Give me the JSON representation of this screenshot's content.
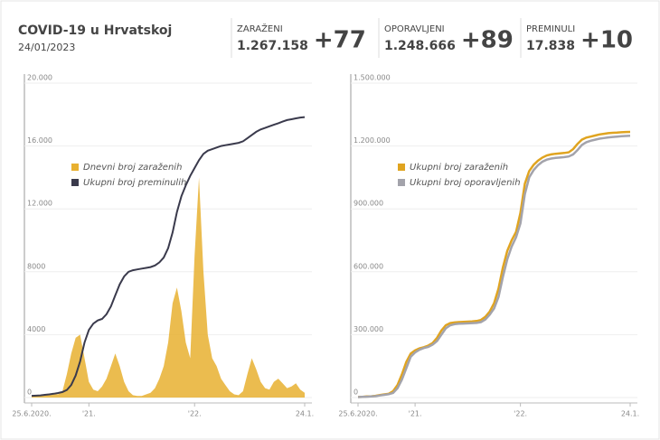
{
  "header": {
    "title": "COVID-19 u Hrvatskoj",
    "date": "24/01/2023",
    "stats": [
      {
        "label": "ZARAŽENI",
        "total": "1.267.158",
        "delta": "+77",
        "color": "#b8202a"
      },
      {
        "label": "OPORAVLJENI",
        "total": "1.248.666",
        "delta": "+89",
        "color": "#2e8b3a"
      },
      {
        "label": "PREMINULI",
        "total": "17.838",
        "delta": "+10",
        "color": "#b8202a"
      }
    ]
  },
  "chart_data": [
    {
      "type": "line",
      "categories": [
        "25.6.2020.",
        null,
        null,
        null,
        null,
        null,
        null,
        null,
        null,
        null,
        null,
        null,
        null,
        "'21.",
        null,
        null,
        null,
        null,
        null,
        null,
        null,
        null,
        null,
        null,
        null,
        null,
        null,
        null,
        null,
        null,
        null,
        null,
        null,
        null,
        null,
        null,
        null,
        "'22.",
        null,
        null,
        null,
        null,
        null,
        null,
        null,
        null,
        null,
        null,
        null,
        null,
        null,
        null,
        null,
        null,
        null,
        null,
        null,
        null,
        null,
        null,
        null,
        null,
        "24.1."
      ],
      "ylim": [
        0,
        20000
      ],
      "yticks": [
        0,
        4000,
        8000,
        {
          "value": 12000,
          "label": "12.000"
        },
        {
          "value": 16000,
          "label": "16.000"
        },
        {
          "value": 20000,
          "label": "20.000"
        }
      ],
      "grid": true,
      "legend": "upper left",
      "series": [
        {
          "name": "Dnevni broj zaraženih",
          "type": "area",
          "color": "#e8b030",
          "values": [
            50,
            100,
            150,
            200,
            250,
            250,
            200,
            400,
            1500,
            2800,
            3800,
            4000,
            2500,
            1000,
            500,
            400,
            700,
            1200,
            2000,
            2800,
            2000,
            1000,
            400,
            150,
            100,
            100,
            200,
            300,
            600,
            1200,
            2000,
            3500,
            6000,
            7000,
            5500,
            3500,
            2500,
            9000,
            14000,
            8000,
            4000,
            2500,
            2000,
            1200,
            800,
            400,
            200,
            150,
            400,
            1500,
            2500,
            1800,
            1000,
            600,
            500,
            1000,
            1200,
            900,
            600,
            700,
            900,
            500,
            300
          ]
        },
        {
          "name": "Ukupni broj preminulih",
          "type": "line",
          "color": "#3a3a4c",
          "values": [
            107,
            120,
            140,
            170,
            200,
            240,
            290,
            350,
            480,
            800,
            1400,
            2300,
            3500,
            4300,
            4700,
            4900,
            5000,
            5300,
            5800,
            6500,
            7200,
            7700,
            8000,
            8100,
            8150,
            8200,
            8250,
            8300,
            8400,
            8600,
            8900,
            9500,
            10500,
            11800,
            12800,
            13500,
            14100,
            14600,
            15100,
            15500,
            15700,
            15800,
            15900,
            16000,
            16050,
            16100,
            16150,
            16200,
            16300,
            16500,
            16700,
            16900,
            17050,
            17150,
            17250,
            17350,
            17450,
            17550,
            17650,
            17700,
            17760,
            17810,
            17838
          ]
        }
      ]
    },
    {
      "type": "line",
      "categories": [
        "25.6.2020.",
        null,
        null,
        null,
        null,
        null,
        null,
        null,
        null,
        null,
        null,
        null,
        null,
        "'21.",
        null,
        null,
        null,
        null,
        null,
        null,
        null,
        null,
        null,
        null,
        null,
        null,
        null,
        null,
        null,
        null,
        null,
        null,
        null,
        null,
        null,
        null,
        null,
        "'22.",
        null,
        null,
        null,
        null,
        null,
        null,
        null,
        null,
        null,
        null,
        null,
        null,
        null,
        null,
        null,
        null,
        null,
        null,
        null,
        null,
        null,
        null,
        null,
        null,
        "24.1."
      ],
      "ylim": [
        0,
        1500000
      ],
      "yticks": [
        0,
        {
          "value": 300000,
          "label": "300.000"
        },
        {
          "value": 600000,
          "label": "600.000"
        },
        {
          "value": 900000,
          "label": "900.000"
        },
        {
          "value": 1200000,
          "label": "1.200.000"
        },
        {
          "value": 1500000,
          "label": "1.500.000"
        }
      ],
      "grid": true,
      "legend": "upper left",
      "series": [
        {
          "name": "Ukupni broj zaraženih",
          "type": "line",
          "color": "#e0a420",
          "values": [
            2500,
            3500,
            5000,
            6000,
            8000,
            12000,
            15000,
            18000,
            30000,
            60000,
            110000,
            170000,
            210000,
            225000,
            235000,
            240000,
            248000,
            260000,
            285000,
            320000,
            345000,
            355000,
            358000,
            360000,
            361000,
            362000,
            363000,
            365000,
            370000,
            385000,
            410000,
            450000,
            520000,
            620000,
            700000,
            750000,
            790000,
            880000,
            1020000,
            1080000,
            1110000,
            1130000,
            1145000,
            1155000,
            1160000,
            1163000,
            1165000,
            1167000,
            1170000,
            1185000,
            1210000,
            1230000,
            1240000,
            1245000,
            1250000,
            1255000,
            1258000,
            1261000,
            1263000,
            1264000,
            1265500,
            1266700,
            1267158
          ]
        },
        {
          "name": "Ukupni broj oporavljenih",
          "type": "line",
          "color": "#a3a3ab",
          "values": [
            2200,
            3000,
            4000,
            5000,
            6500,
            10000,
            13000,
            16000,
            22000,
            45000,
            85000,
            140000,
            195000,
            215000,
            228000,
            236000,
            242000,
            252000,
            270000,
            300000,
            330000,
            345000,
            350000,
            352000,
            353000,
            354000,
            355000,
            356000,
            360000,
            372000,
            395000,
            425000,
            480000,
            575000,
            660000,
            720000,
            765000,
            830000,
            970000,
            1050000,
            1085000,
            1108000,
            1125000,
            1135000,
            1140000,
            1143000,
            1145000,
            1147000,
            1150000,
            1160000,
            1180000,
            1205000,
            1218000,
            1225000,
            1230000,
            1235000,
            1238000,
            1241000,
            1243000,
            1245000,
            1246500,
            1247800,
            1248666
          ]
        }
      ]
    }
  ]
}
